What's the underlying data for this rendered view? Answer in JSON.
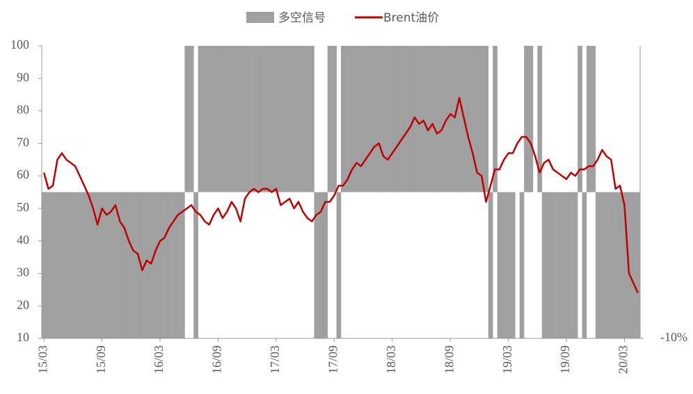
{
  "chart_data": {
    "type": "combo",
    "categories": [
      "15/03",
      null,
      null,
      null,
      null,
      null,
      null,
      null,
      null,
      null,
      null,
      null,
      null,
      "15/09",
      null,
      null,
      null,
      null,
      null,
      null,
      null,
      null,
      null,
      null,
      null,
      null,
      "16/03",
      null,
      null,
      null,
      null,
      null,
      null,
      null,
      null,
      null,
      null,
      null,
      null,
      "16/09",
      null,
      null,
      null,
      null,
      null,
      null,
      null,
      null,
      null,
      null,
      null,
      null,
      "17/03",
      null,
      null,
      null,
      null,
      null,
      null,
      null,
      null,
      null,
      null,
      null,
      null,
      "17/09",
      null,
      null,
      null,
      null,
      null,
      null,
      null,
      null,
      null,
      null,
      null,
      null,
      "18/03",
      null,
      null,
      null,
      null,
      null,
      null,
      null,
      null,
      null,
      null,
      null,
      null,
      "18/09",
      null,
      null,
      null,
      null,
      null,
      null,
      null,
      null,
      null,
      null,
      null,
      null,
      "19/03",
      null,
      null,
      null,
      null,
      null,
      null,
      null,
      null,
      null,
      null,
      null,
      null,
      "19/09",
      null,
      null,
      null,
      null,
      null,
      null,
      null,
      null,
      null,
      null,
      null,
      null,
      "20/03",
      null,
      null,
      null
    ],
    "series": [
      {
        "name": "多空信号",
        "type": "bar",
        "axis": "y2",
        "color": "#a0a0a0",
        "values": [
          -10,
          -10,
          -10,
          -10,
          -10,
          -10,
          -10,
          -10,
          -10,
          -10,
          -10,
          -10,
          -10,
          -10,
          -10,
          -10,
          -10,
          -10,
          -10,
          -10,
          -10,
          -10,
          -10,
          -10,
          -10,
          -10,
          -10,
          -10,
          -10,
          -10,
          -10,
          -10,
          10,
          10,
          -10,
          10,
          10,
          10,
          10,
          10,
          10,
          10,
          10,
          10,
          10,
          10,
          10,
          10,
          10,
          10,
          10,
          10,
          10,
          10,
          10,
          10,
          10,
          10,
          10,
          10,
          10,
          -10,
          -10,
          -10,
          10,
          10,
          -10,
          10,
          10,
          10,
          10,
          10,
          10,
          10,
          10,
          10,
          10,
          10,
          10,
          10,
          10,
          10,
          10,
          10,
          10,
          10,
          10,
          10,
          10,
          10,
          10,
          10,
          10,
          10,
          10,
          10,
          10,
          10,
          10,
          10,
          -10,
          10,
          -10,
          -10,
          -10,
          -10,
          0,
          -10,
          10,
          10,
          0,
          10,
          -10,
          -10,
          -10,
          -10,
          -10,
          -10,
          -10,
          -10,
          10,
          -10,
          10,
          10,
          -10,
          -10,
          -10,
          -10,
          -10,
          -10,
          -10,
          -10,
          -10,
          -10
        ]
      },
      {
        "name": "Brent油价",
        "type": "line",
        "color": "#c00000",
        "values": [
          61,
          56,
          57,
          65,
          67,
          65,
          64,
          63,
          60,
          57,
          54,
          50,
          45,
          50,
          48,
          49,
          51,
          46,
          44,
          40,
          37,
          36,
          31,
          34,
          33,
          37,
          40,
          41,
          44,
          46,
          48,
          49,
          50,
          51,
          49,
          48,
          46,
          45,
          48,
          50,
          47,
          49,
          52,
          50,
          46,
          53,
          55,
          56,
          55,
          56,
          56,
          55,
          56,
          51,
          52,
          53,
          50,
          52,
          49,
          47,
          46,
          48,
          49,
          52,
          52,
          54,
          57,
          57,
          59,
          62,
          64,
          63,
          65,
          67,
          69,
          70,
          66,
          65,
          67,
          69,
          71,
          73,
          75,
          78,
          76,
          77,
          74,
          76,
          73,
          74,
          77,
          79,
          78,
          84,
          78,
          72,
          67,
          61,
          60,
          52,
          57,
          62,
          62,
          65,
          67,
          67,
          70,
          72,
          72,
          70,
          66,
          61,
          64,
          65,
          62,
          61,
          60,
          59,
          61,
          60,
          62,
          62,
          63,
          63,
          65,
          68,
          66,
          65,
          56,
          57,
          51,
          30,
          27,
          24
        ]
      }
    ],
    "ylim": [
      10,
      100
    ],
    "yticks": [
      10,
      20,
      30,
      40,
      50,
      60,
      70,
      80,
      90,
      100
    ],
    "y2lim": [
      -10,
      10
    ],
    "y2ticks": [
      {
        "value": -10,
        "label": "-10%"
      }
    ],
    "grid": false,
    "legend": "top"
  }
}
